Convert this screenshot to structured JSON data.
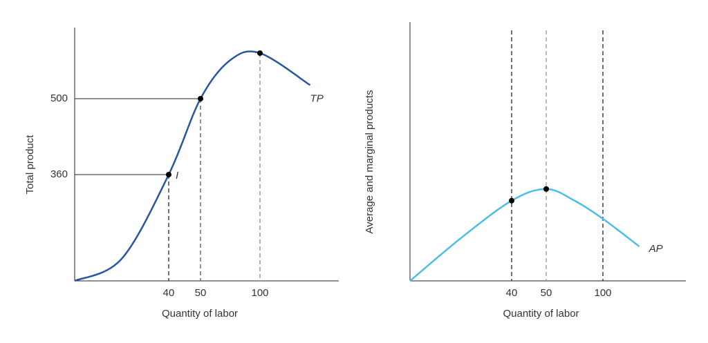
{
  "chart_data": [
    {
      "type": "line",
      "xlabel": "Quantity of labor",
      "ylabel": "Total product",
      "xlim": [
        0,
        166
      ],
      "ylim": [
        0,
        631
      ],
      "xticks": [
        40,
        50,
        100
      ],
      "yticks": [
        360,
        500
      ],
      "guide_colors": [
        "#222222",
        "#555555",
        "#888888"
      ],
      "x": [
        0,
        20,
        40,
        50,
        75,
        100,
        142
      ],
      "series": [
        {
          "name": "TP",
          "color": "#2757a0",
          "values": [
            0,
            75,
            360,
            500,
            571,
            584,
            525
          ]
        }
      ],
      "dots": {
        "x": [
          40,
          50,
          100
        ],
        "y": [
          360,
          500,
          584
        ]
      },
      "annotations": [
        "I"
      ]
    },
    {
      "type": "line",
      "xlabel": "Quantity of labor",
      "ylabel": "Average and marginal products",
      "xlim": [
        0,
        173
      ],
      "ylim": [
        0,
        100
      ],
      "xticks": [
        40,
        50,
        100
      ],
      "guide_colors": [
        "#222222",
        "#999999",
        "#222222"
      ],
      "x": [
        0,
        20,
        40,
        50,
        75,
        100,
        132
      ],
      "series": [
        {
          "name": "AP",
          "color": "#4bbde8",
          "values": [
            0,
            16.5,
            31,
            35.5,
            31,
            24,
            13.3
          ]
        }
      ],
      "dots": {
        "x": [
          40,
          50
        ],
        "y": [
          31,
          35.5
        ]
      }
    }
  ]
}
